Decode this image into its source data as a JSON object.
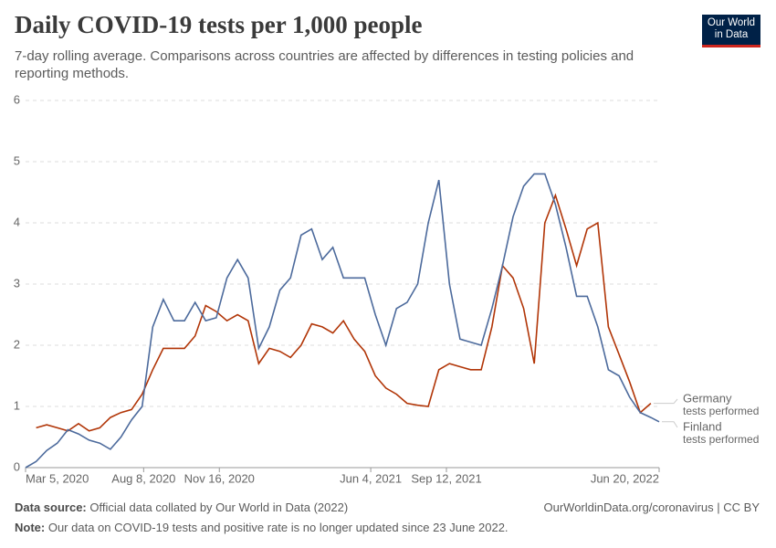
{
  "header": {
    "title": "Daily COVID-19 tests per 1,000 people",
    "subtitle": "7-day rolling average. Comparisons across countries are affected by differences in testing policies and reporting methods.",
    "logo": [
      "Our World",
      "in Data"
    ]
  },
  "footer": {
    "source_label": "Data source:",
    "source": "Official data collated by Our World in Data (2022)",
    "url": "OurWorldinData.org/coronavirus | CC BY",
    "note_label": "Note:",
    "note": "Our data on COVID-19 tests and positive rate is no longer updated since 23 June 2022."
  },
  "chart_data": {
    "type": "line",
    "x": [
      "2020-03-05",
      "2020-03-19",
      "2020-04-02",
      "2020-04-16",
      "2020-04-30",
      "2020-05-14",
      "2020-05-28",
      "2020-06-11",
      "2020-06-25",
      "2020-07-09",
      "2020-07-23",
      "2020-08-06",
      "2020-08-20",
      "2020-09-03",
      "2020-09-17",
      "2020-10-01",
      "2020-10-15",
      "2020-10-29",
      "2020-11-12",
      "2020-11-26",
      "2020-12-10",
      "2020-12-24",
      "2021-01-07",
      "2021-01-21",
      "2021-02-04",
      "2021-02-18",
      "2021-03-04",
      "2021-03-18",
      "2021-04-01",
      "2021-04-15",
      "2021-04-29",
      "2021-05-13",
      "2021-05-27",
      "2021-06-10",
      "2021-06-24",
      "2021-07-08",
      "2021-07-22",
      "2021-08-05",
      "2021-08-19",
      "2021-09-02",
      "2021-09-16",
      "2021-09-30",
      "2021-10-14",
      "2021-10-28",
      "2021-11-11",
      "2021-11-25",
      "2021-12-09",
      "2021-12-23",
      "2022-01-06",
      "2022-01-20",
      "2022-02-03",
      "2022-02-17",
      "2022-03-03",
      "2022-03-17",
      "2022-03-31",
      "2022-04-14",
      "2022-04-28",
      "2022-05-12",
      "2022-05-26",
      "2022-06-09",
      "2022-06-20"
    ],
    "series": [
      {
        "name": "Germany",
        "sublabel": "tests performed",
        "color": "#b13507",
        "values": [
          null,
          0.65,
          0.7,
          0.65,
          0.6,
          0.72,
          0.6,
          0.65,
          0.82,
          0.9,
          0.95,
          1.2,
          1.6,
          1.95,
          1.95,
          1.95,
          2.15,
          2.65,
          2.55,
          2.4,
          2.5,
          2.4,
          1.7,
          1.95,
          1.9,
          1.8,
          2.0,
          2.35,
          2.3,
          2.2,
          2.4,
          2.1,
          1.9,
          1.5,
          1.3,
          1.2,
          1.05,
          1.02,
          1.0,
          1.6,
          1.7,
          1.65,
          1.6,
          1.6,
          2.3,
          3.3,
          3.1,
          2.6,
          1.7,
          4.0,
          4.45,
          3.9,
          3.3,
          3.9,
          4.0,
          2.3,
          1.85,
          1.4,
          0.9,
          1.05,
          null
        ]
      },
      {
        "name": "Finland",
        "sublabel": "tests performed",
        "color": "#4c6a9c",
        "values": [
          0,
          0.1,
          0.28,
          0.4,
          0.62,
          0.55,
          0.45,
          0.4,
          0.3,
          0.5,
          0.78,
          1.0,
          2.3,
          2.75,
          2.4,
          2.4,
          2.7,
          2.4,
          2.45,
          3.1,
          3.4,
          3.1,
          1.95,
          2.3,
          2.9,
          3.1,
          3.8,
          3.9,
          3.4,
          3.6,
          3.1,
          3.1,
          3.1,
          2.5,
          2.0,
          2.6,
          2.7,
          3.0,
          4.0,
          4.7,
          3.0,
          2.1,
          2.05,
          2.0,
          2.6,
          3.3,
          4.1,
          4.6,
          4.8,
          4.8,
          4.3,
          3.6,
          2.8,
          2.8,
          2.3,
          1.6,
          1.5,
          1.15,
          0.9,
          0.82,
          0.75
        ]
      }
    ],
    "xlim": [
      "2020-03-05",
      "2022-06-20"
    ],
    "xticks": [
      {
        "value": "2020-03-05",
        "label": "Mar 5, 2020"
      },
      {
        "value": "2020-08-08",
        "label": "Aug 8, 2020"
      },
      {
        "value": "2020-11-16",
        "label": "Nov 16, 2020"
      },
      {
        "value": "2021-06-04",
        "label": "Jun 4, 2021"
      },
      {
        "value": "2021-09-12",
        "label": "Sep 12, 2021"
      },
      {
        "value": "2022-06-20",
        "label": "Jun 20, 2022"
      }
    ],
    "ylim": [
      0,
      6
    ],
    "yticks": [
      0,
      1,
      2,
      3,
      4,
      5,
      6
    ],
    "grid": true
  }
}
